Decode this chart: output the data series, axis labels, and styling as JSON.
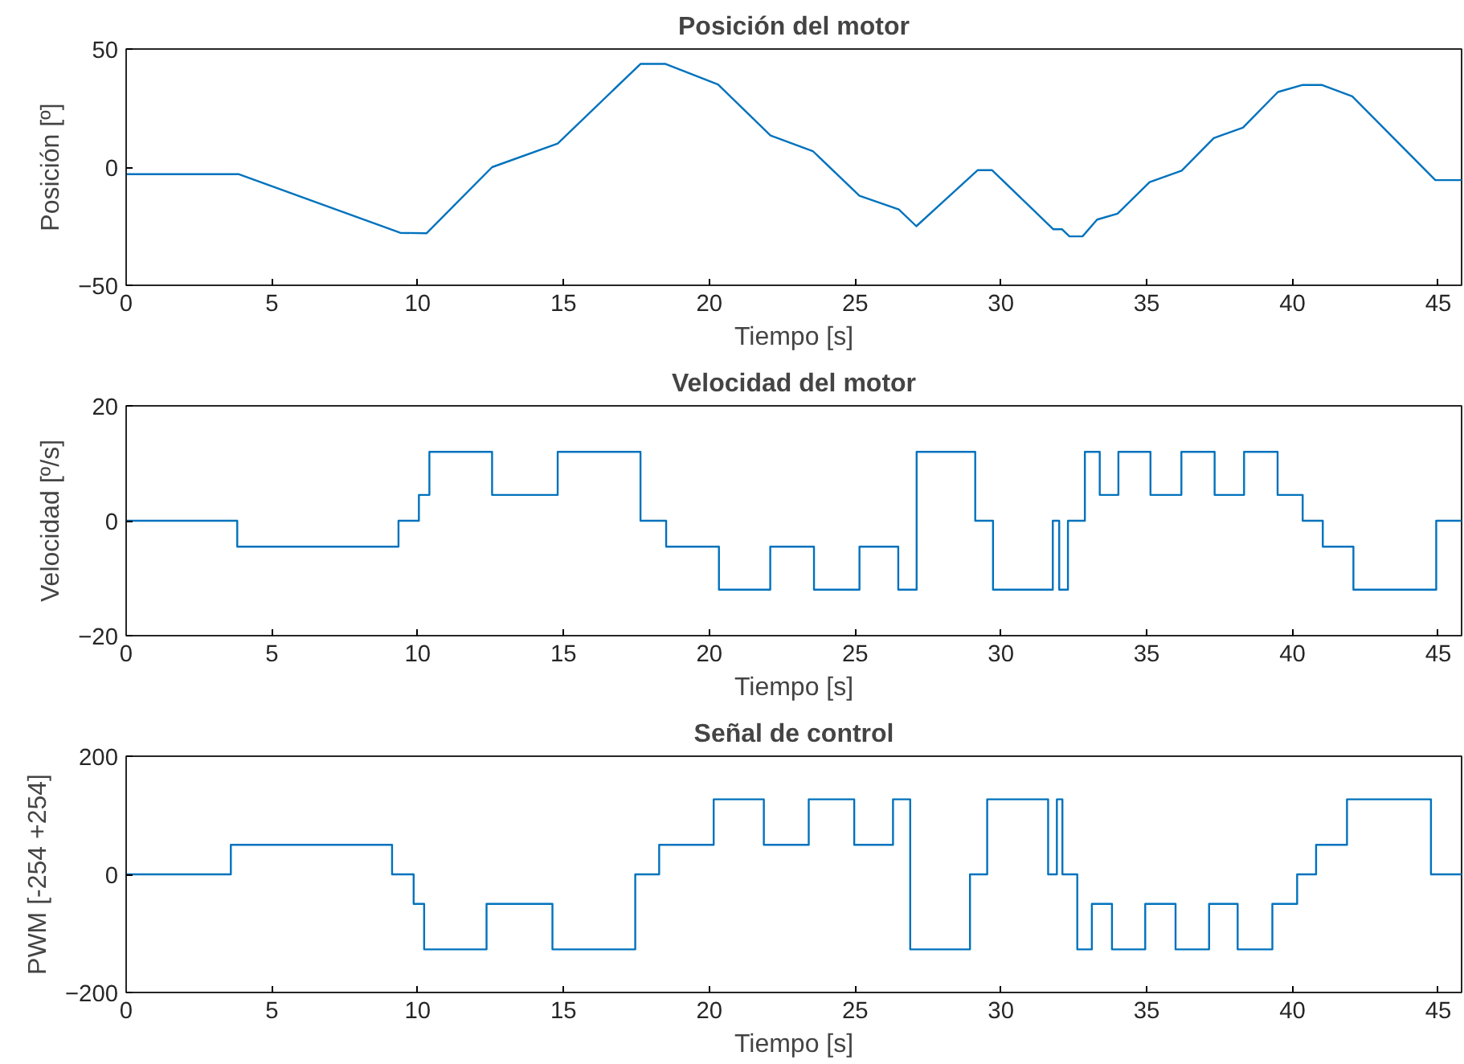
{
  "chart_data": [
    {
      "type": "line",
      "title": "Posición del motor",
      "xlabel": "Tiempo [s]",
      "ylabel": "Posición [º]",
      "xlim": [
        0,
        45.8
      ],
      "xticks": [
        0,
        5,
        10,
        15,
        20,
        25,
        30,
        35,
        40,
        45
      ],
      "ylim": [
        -50,
        50
      ],
      "yticks": [
        -50,
        0,
        50
      ],
      "series": [
        {
          "color": "#0072bd",
          "x": [
            0,
            3.87,
            9.4,
            10.3,
            12.55,
            14.8,
            17.64,
            18.5,
            20.3,
            22.1,
            23.55,
            25.15,
            26.5,
            27.1,
            29.2,
            29.7,
            31.8,
            32.1,
            32.35,
            32.8,
            33.3,
            34.0,
            35.1,
            36.2,
            37.3,
            38.3,
            39.5,
            40.35,
            41.0,
            42.05,
            44.9,
            45.8
          ],
          "values": [
            -3,
            -3,
            -27.8,
            -28,
            0,
            10,
            43.7,
            43.7,
            35,
            13.4,
            6.8,
            -12.1,
            -17.9,
            -25,
            -1.3,
            -1.3,
            -26.3,
            -26.3,
            -29.3,
            -29.3,
            -22.2,
            -19.7,
            -6.3,
            -1.5,
            12.3,
            16.7,
            31.8,
            34.8,
            34.8,
            30,
            -5.5,
            -5.5
          ]
        }
      ]
    },
    {
      "type": "step",
      "title": "Velocidad del motor",
      "xlabel": "Tiempo [s]",
      "ylabel": "Velocidad [º/s]",
      "xlim": [
        0,
        45.8
      ],
      "xticks": [
        0,
        5,
        10,
        15,
        20,
        25,
        30,
        35,
        40,
        45
      ],
      "ylim": [
        -20,
        20
      ],
      "yticks": [
        -20,
        0,
        20
      ],
      "series": [
        {
          "color": "#0072bd",
          "x": [
            0,
            3.81,
            9.34,
            10.04,
            10.4,
            12.55,
            14.8,
            17.64,
            18.52,
            20.33,
            22.09,
            23.59,
            25.15,
            26.48,
            27.11,
            29.12,
            29.73,
            31.78,
            32.0,
            32.3,
            32.88,
            33.39,
            34.03,
            35.13,
            36.19,
            37.33,
            38.34,
            39.49,
            40.35,
            41.04,
            42.09,
            44.93,
            45.8
          ],
          "values": [
            0,
            -4.5,
            0,
            4.5,
            12,
            4.5,
            12,
            0,
            -4.5,
            -12,
            -4.5,
            -12,
            -4.5,
            -12,
            12,
            0,
            -12,
            0,
            -12,
            0,
            12,
            4.5,
            12,
            4.5,
            12,
            4.5,
            12,
            4.5,
            0,
            -4.5,
            -12,
            0,
            0
          ]
        }
      ]
    },
    {
      "type": "step",
      "title": "Señal de control",
      "xlabel": "Tiempo [s]",
      "ylabel": "PWM [-254 +254]",
      "xlim": [
        0,
        45.8
      ],
      "xticks": [
        0,
        5,
        10,
        15,
        20,
        25,
        30,
        35,
        40,
        45
      ],
      "ylim": [
        -200,
        200
      ],
      "yticks": [
        -200,
        0,
        200
      ],
      "series": [
        {
          "color": "#0072bd",
          "x": [
            0,
            3.59,
            9.12,
            9.86,
            10.22,
            12.36,
            14.62,
            17.46,
            18.28,
            20.15,
            21.87,
            23.41,
            24.97,
            26.3,
            26.89,
            28.94,
            29.53,
            31.62,
            31.92,
            32.11,
            32.62,
            33.12,
            33.81,
            34.95,
            35.99,
            37.14,
            38.12,
            39.31,
            40.16,
            40.81,
            41.87,
            44.75,
            45.8
          ],
          "values": [
            0,
            50,
            0,
            -50,
            -127,
            -50,
            -127,
            0,
            50,
            127,
            50,
            127,
            50,
            127,
            -127,
            0,
            127,
            0,
            127,
            0,
            -127,
            -50,
            -127,
            -50,
            -127,
            -50,
            -127,
            -50,
            0,
            50,
            127,
            0,
            0
          ]
        }
      ]
    }
  ]
}
